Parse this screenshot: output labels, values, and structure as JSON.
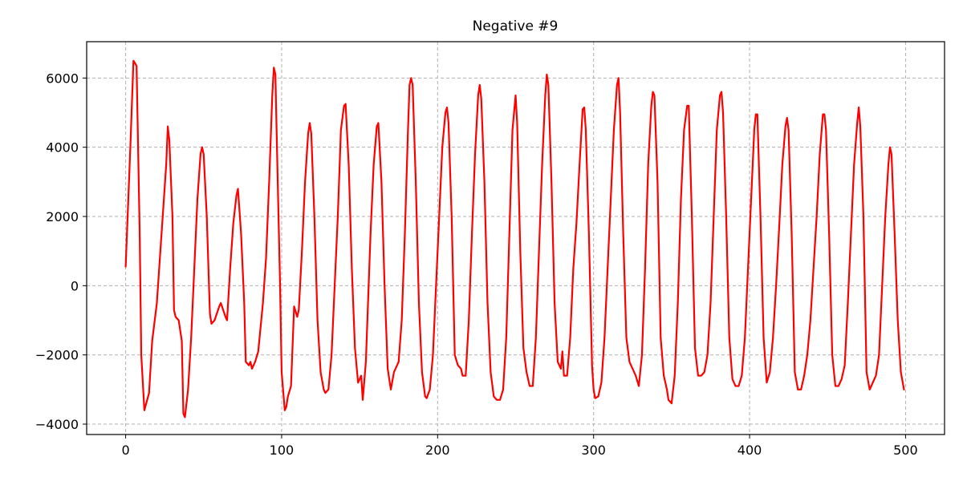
{
  "chart_data": {
    "type": "line",
    "title": "Negative  #9",
    "xlabel": "",
    "ylabel": "",
    "xlim": [
      -25,
      525
    ],
    "ylim": [
      -4300,
      7050
    ],
    "xticks": [
      0,
      100,
      200,
      300,
      400,
      500
    ],
    "yticks": [
      -4000,
      -2000,
      0,
      2000,
      4000,
      6000
    ],
    "xtick_labels": [
      "0",
      "100",
      "200",
      "300",
      "400",
      "500"
    ],
    "ytick_labels": [
      "−4000",
      "−2000",
      "0",
      "2000",
      "4000",
      "6000"
    ],
    "grid": true,
    "legend": "none",
    "series": [
      {
        "color": "#ff0000",
        "points": [
          [
            0,
            550
          ],
          [
            3,
            4000
          ],
          [
            5,
            6500
          ],
          [
            7,
            6350
          ],
          [
            9,
            1500
          ],
          [
            10,
            -2000
          ],
          [
            12,
            -3600
          ],
          [
            15,
            -3100
          ],
          [
            17,
            -1600
          ],
          [
            20,
            -500
          ],
          [
            23,
            1500
          ],
          [
            26,
            3500
          ],
          [
            27,
            4600
          ],
          [
            28,
            4200
          ],
          [
            30,
            2000
          ],
          [
            31,
            -700
          ],
          [
            32,
            -900
          ],
          [
            34,
            -1000
          ],
          [
            36,
            -1600
          ],
          [
            37,
            -3700
          ],
          [
            38,
            -3800
          ],
          [
            40,
            -3000
          ],
          [
            42,
            -1500
          ],
          [
            44,
            500
          ],
          [
            46,
            2500
          ],
          [
            48,
            3800
          ],
          [
            49,
            4000
          ],
          [
            50,
            3800
          ],
          [
            52,
            2000
          ],
          [
            54,
            -800
          ],
          [
            55,
            -1100
          ],
          [
            57,
            -1000
          ],
          [
            60,
            -600
          ],
          [
            61,
            -500
          ],
          [
            64,
            -900
          ],
          [
            65,
            -1000
          ],
          [
            67,
            500
          ],
          [
            69,
            1800
          ],
          [
            71,
            2600
          ],
          [
            72,
            2800
          ],
          [
            74,
            1500
          ],
          [
            76,
            -500
          ],
          [
            77,
            -2200
          ],
          [
            79,
            -2300
          ],
          [
            80,
            -2200
          ],
          [
            81,
            -2400
          ],
          [
            83,
            -2200
          ],
          [
            85,
            -1900
          ],
          [
            88,
            -500
          ],
          [
            90,
            800
          ],
          [
            92,
            3000
          ],
          [
            94,
            5500
          ],
          [
            95,
            6300
          ],
          [
            96,
            6100
          ],
          [
            97,
            4000
          ],
          [
            99,
            0
          ],
          [
            100,
            -2500
          ],
          [
            102,
            -3600
          ],
          [
            103,
            -3500
          ],
          [
            104,
            -3200
          ],
          [
            106,
            -2900
          ],
          [
            108,
            -600
          ],
          [
            110,
            -900
          ],
          [
            111,
            -700
          ],
          [
            113,
            1000
          ],
          [
            115,
            3000
          ],
          [
            117,
            4400
          ],
          [
            118,
            4700
          ],
          [
            119,
            4400
          ],
          [
            121,
            2000
          ],
          [
            123,
            -1000
          ],
          [
            125,
            -2500
          ],
          [
            127,
            -3000
          ],
          [
            128,
            -3100
          ],
          [
            130,
            -3000
          ],
          [
            132,
            -2000
          ],
          [
            134,
            0
          ],
          [
            136,
            2000
          ],
          [
            138,
            4500
          ],
          [
            140,
            5200
          ],
          [
            141,
            5250
          ],
          [
            143,
            3500
          ],
          [
            145,
            500
          ],
          [
            147,
            -1800
          ],
          [
            149,
            -2800
          ],
          [
            151,
            -2600
          ],
          [
            152,
            -3300
          ],
          [
            154,
            -2200
          ],
          [
            157,
            1500
          ],
          [
            159,
            3500
          ],
          [
            161,
            4600
          ],
          [
            162,
            4700
          ],
          [
            164,
            3000
          ],
          [
            166,
            0
          ],
          [
            168,
            -2400
          ],
          [
            170,
            -3000
          ],
          [
            172,
            -2500
          ],
          [
            175,
            -2200
          ],
          [
            177,
            -1000
          ],
          [
            179,
            1500
          ],
          [
            181,
            4500
          ],
          [
            182,
            5800
          ],
          [
            183,
            6000
          ],
          [
            184,
            5800
          ],
          [
            186,
            3000
          ],
          [
            188,
            -500
          ],
          [
            190,
            -2500
          ],
          [
            192,
            -3200
          ],
          [
            193,
            -3250
          ],
          [
            195,
            -3000
          ],
          [
            197,
            -2000
          ],
          [
            199,
            0
          ],
          [
            201,
            2000
          ],
          [
            203,
            4000
          ],
          [
            205,
            5000
          ],
          [
            206,
            5150
          ],
          [
            207,
            4700
          ],
          [
            209,
            2000
          ],
          [
            211,
            -2000
          ],
          [
            213,
            -2300
          ],
          [
            215,
            -2400
          ],
          [
            216,
            -2600
          ],
          [
            218,
            -2600
          ],
          [
            220,
            -1000
          ],
          [
            222,
            1500
          ],
          [
            224,
            3800
          ],
          [
            226,
            5500
          ],
          [
            227,
            5800
          ],
          [
            228,
            5400
          ],
          [
            230,
            3000
          ],
          [
            232,
            -500
          ],
          [
            234,
            -2500
          ],
          [
            236,
            -3200
          ],
          [
            238,
            -3300
          ],
          [
            240,
            -3300
          ],
          [
            242,
            -3000
          ],
          [
            244,
            -1500
          ],
          [
            246,
            1500
          ],
          [
            248,
            4500
          ],
          [
            250,
            5500
          ],
          [
            251,
            4700
          ],
          [
            253,
            1000
          ],
          [
            255,
            -1800
          ],
          [
            257,
            -2500
          ],
          [
            259,
            -2900
          ],
          [
            261,
            -2900
          ],
          [
            263,
            -1500
          ],
          [
            265,
            1000
          ],
          [
            267,
            3500
          ],
          [
            269,
            5500
          ],
          [
            270,
            6100
          ],
          [
            271,
            5800
          ],
          [
            273,
            3000
          ],
          [
            275,
            -500
          ],
          [
            277,
            -2200
          ],
          [
            279,
            -2400
          ],
          [
            280,
            -1900
          ],
          [
            281,
            -2600
          ],
          [
            283,
            -2600
          ],
          [
            285,
            -1500
          ],
          [
            287,
            500
          ],
          [
            289,
            1800
          ],
          [
            291,
            3500
          ],
          [
            293,
            5100
          ],
          [
            294,
            5150
          ],
          [
            295,
            4500
          ],
          [
            297,
            1500
          ],
          [
            299,
            -2300
          ],
          [
            300,
            -3000
          ],
          [
            301,
            -3250
          ],
          [
            303,
            -3200
          ],
          [
            305,
            -2800
          ],
          [
            307,
            -1500
          ],
          [
            309,
            500
          ],
          [
            311,
            2500
          ],
          [
            313,
            4500
          ],
          [
            315,
            5800
          ],
          [
            316,
            6000
          ],
          [
            317,
            5000
          ],
          [
            319,
            1500
          ],
          [
            321,
            -1500
          ],
          [
            323,
            -2200
          ],
          [
            325,
            -2400
          ],
          [
            327,
            -2600
          ],
          [
            329,
            -2900
          ],
          [
            331,
            -2000
          ],
          [
            333,
            500
          ],
          [
            335,
            3500
          ],
          [
            337,
            5200
          ],
          [
            338,
            5600
          ],
          [
            339,
            5500
          ],
          [
            341,
            3000
          ],
          [
            343,
            -1500
          ],
          [
            345,
            -2600
          ],
          [
            347,
            -3000
          ],
          [
            348,
            -3300
          ],
          [
            350,
            -3400
          ],
          [
            352,
            -2600
          ],
          [
            354,
            -500
          ],
          [
            356,
            2500
          ],
          [
            358,
            4500
          ],
          [
            360,
            5200
          ],
          [
            361,
            5200
          ],
          [
            363,
            2000
          ],
          [
            365,
            -1800
          ],
          [
            367,
            -2600
          ],
          [
            369,
            -2600
          ],
          [
            371,
            -2500
          ],
          [
            373,
            -2000
          ],
          [
            375,
            -500
          ],
          [
            377,
            2000
          ],
          [
            379,
            4500
          ],
          [
            381,
            5500
          ],
          [
            382,
            5600
          ],
          [
            383,
            5000
          ],
          [
            385,
            2000
          ],
          [
            387,
            -1500
          ],
          [
            389,
            -2700
          ],
          [
            391,
            -2900
          ],
          [
            393,
            -2900
          ],
          [
            395,
            -2600
          ],
          [
            397,
            -1500
          ],
          [
            399,
            500
          ],
          [
            401,
            2500
          ],
          [
            403,
            4500
          ],
          [
            404,
            4950
          ],
          [
            405,
            4950
          ],
          [
            407,
            2000
          ],
          [
            409,
            -1500
          ],
          [
            411,
            -2800
          ],
          [
            413,
            -2500
          ],
          [
            415,
            -1500
          ],
          [
            417,
            0
          ],
          [
            419,
            1700
          ],
          [
            421,
            3500
          ],
          [
            423,
            4600
          ],
          [
            424,
            4850
          ],
          [
            425,
            4500
          ],
          [
            427,
            1500
          ],
          [
            429,
            -2500
          ],
          [
            431,
            -3000
          ],
          [
            433,
            -3000
          ],
          [
            435,
            -2600
          ],
          [
            437,
            -2000
          ],
          [
            439,
            -1000
          ],
          [
            441,
            500
          ],
          [
            443,
            2000
          ],
          [
            445,
            3800
          ],
          [
            447,
            4950
          ],
          [
            448,
            4950
          ],
          [
            449,
            4500
          ],
          [
            451,
            1500
          ],
          [
            453,
            -2000
          ],
          [
            455,
            -2900
          ],
          [
            457,
            -2900
          ],
          [
            459,
            -2700
          ],
          [
            461,
            -2300
          ],
          [
            463,
            -500
          ],
          [
            465,
            1500
          ],
          [
            467,
            3500
          ],
          [
            469,
            4700
          ],
          [
            470,
            5150
          ],
          [
            471,
            4600
          ],
          [
            473,
            2000
          ],
          [
            475,
            -2500
          ],
          [
            477,
            -3000
          ],
          [
            479,
            -2800
          ],
          [
            481,
            -2600
          ],
          [
            483,
            -2000
          ],
          [
            485,
            0
          ],
          [
            487,
            2000
          ],
          [
            489,
            3500
          ],
          [
            490,
            4000
          ],
          [
            491,
            3800
          ],
          [
            493,
            1500
          ],
          [
            495,
            -1000
          ],
          [
            497,
            -2500
          ],
          [
            499,
            -3000
          ]
        ]
      }
    ]
  }
}
